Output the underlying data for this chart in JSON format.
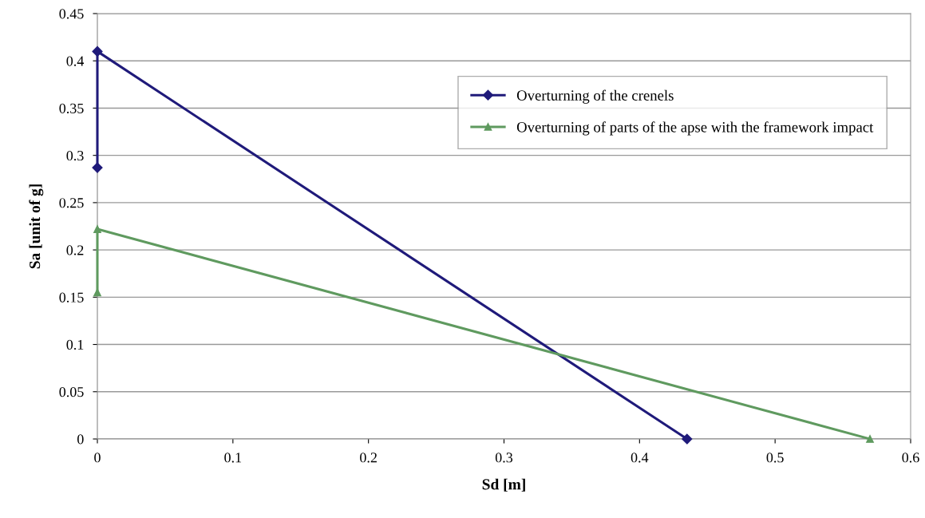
{
  "chart_data": {
    "type": "line",
    "xlabel": "Sd [m]",
    "ylabel": "Sa [unit of g]",
    "series": [
      {
        "name": "Overturning of the crenels",
        "color": "#1f1a7a",
        "marker": "diamond",
        "x": [
          0,
          0,
          0.435
        ],
        "values": [
          0.287,
          0.41,
          0
        ]
      },
      {
        "name": "Overturning of parts of the apse with the framework impact",
        "color": "#5f9a5f",
        "marker": "triangle",
        "x": [
          0,
          0,
          0.57
        ],
        "values": [
          0.155,
          0.222,
          0
        ]
      }
    ],
    "xlim": [
      0,
      0.6
    ],
    "xticks": [
      0,
      0.1,
      0.2,
      0.3,
      0.4,
      0.5,
      0.6
    ],
    "ylim": [
      0,
      0.45
    ],
    "yticks": [
      0,
      0.05,
      0.1,
      0.15,
      0.2,
      0.25,
      0.3,
      0.35,
      0.4,
      0.45
    ],
    "grid": "y",
    "legend": "top right"
  }
}
